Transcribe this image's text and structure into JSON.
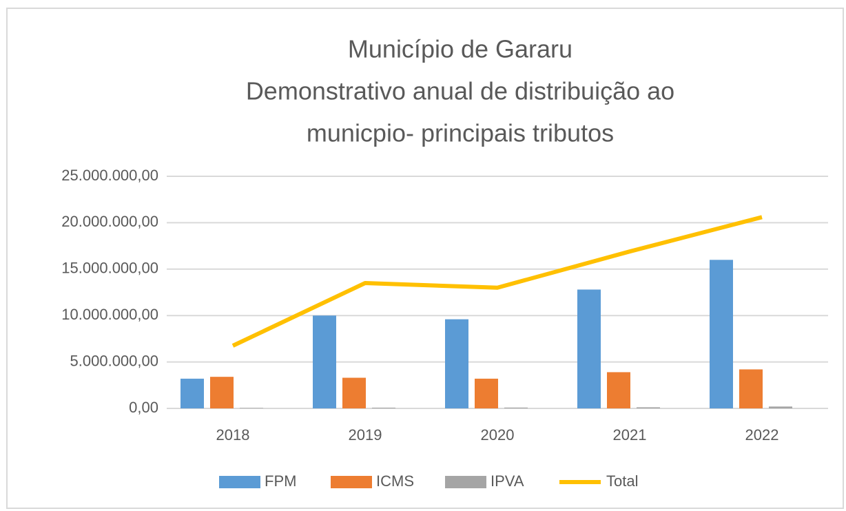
{
  "chart_data": {
    "type": "bar",
    "title": [
      "Município de Gararu",
      "Demonstrativo anual de distribuição ao",
      "municpio- principais tributos"
    ],
    "categories": [
      "2018",
      "2019",
      "2020",
      "2021",
      "2022"
    ],
    "series": [
      {
        "name": "FPM",
        "color": "#5b9bd5",
        "values": [
          3200000,
          10000000,
          9600000,
          12800000,
          16000000
        ]
      },
      {
        "name": "ICMS",
        "color": "#ed7d31",
        "values": [
          3400000,
          3300000,
          3200000,
          3900000,
          4200000
        ]
      },
      {
        "name": "IPVA",
        "color": "#a5a5a5",
        "values": [
          50000,
          80000,
          90000,
          120000,
          200000
        ]
      },
      {
        "name": "Total",
        "color": "#ffc000",
        "type": "line",
        "values": [
          6750000,
          13500000,
          13000000,
          16900000,
          20600000
        ]
      }
    ],
    "ylim": [
      0,
      25000000
    ],
    "yticks": [
      {
        "value": 0,
        "label": "0,00"
      },
      {
        "value": 5000000,
        "label": "5.000.000,00"
      },
      {
        "value": 10000000,
        "label": "10.000.000,00"
      },
      {
        "value": 15000000,
        "label": "15.000.000,00"
      },
      {
        "value": 20000000,
        "label": "20.000.000,00"
      },
      {
        "value": 25000000,
        "label": "25.000.000,00"
      }
    ],
    "grid": true,
    "legend": "bottom"
  }
}
